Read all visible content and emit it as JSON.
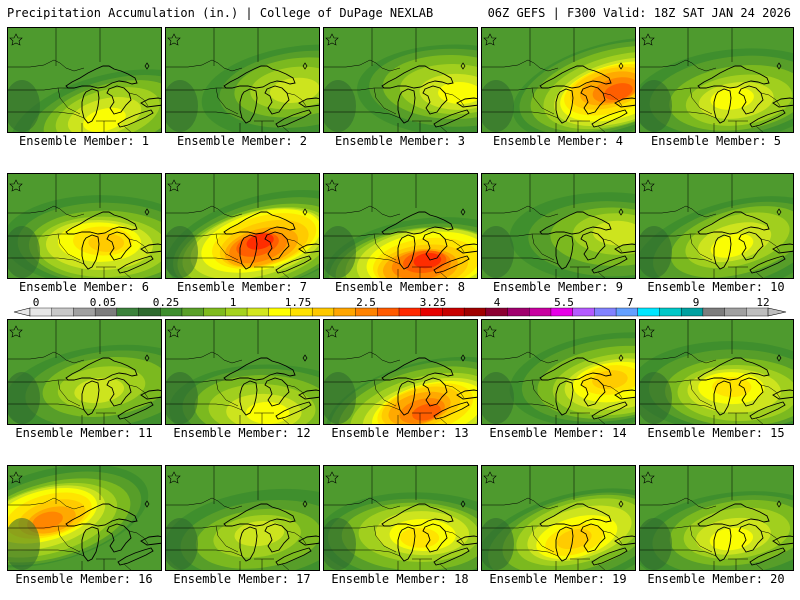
{
  "header": {
    "left": "Precipitation Accumulation (in.) | College of DuPage NEXLAB",
    "right": "06Z GEFS | F300 Valid: 18Z SAT JAN 24 2026"
  },
  "colorbar": {
    "labels": [
      "0",
      "0.05",
      "0.25",
      "1",
      "1.75",
      "2.5",
      "3.25",
      "4",
      "5.5",
      "7",
      "9",
      "12"
    ],
    "colors": [
      "#e6e6e6",
      "#c8c8c8",
      "#a0a0a0",
      "#7d7d7d",
      "#3c823c",
      "#2f6a2f",
      "#3e8e2e",
      "#5aa029",
      "#7fbb1e",
      "#a5d21e",
      "#d2e61e",
      "#ffff00",
      "#ffe100",
      "#ffc800",
      "#ffa500",
      "#ff8200",
      "#ff5a00",
      "#ff2800",
      "#e60000",
      "#c80000",
      "#a00000",
      "#8c0032",
      "#a0006e",
      "#c800a0",
      "#e600e6",
      "#b45aff",
      "#8282ff",
      "#64a0ff",
      "#00e6ff",
      "#00c8c8",
      "#00a0a0",
      "#7d7d7d",
      "#a0a0a0",
      "#bebebe"
    ]
  },
  "members": [
    {
      "label": "Ensemble Member: 1",
      "intensity": 0.45,
      "hot": "south"
    },
    {
      "label": "Ensemble Member: 2",
      "intensity": 0.35,
      "hot": "east"
    },
    {
      "label": "Ensemble Member: 3",
      "intensity": 0.45,
      "hot": "east"
    },
    {
      "label": "Ensemble Member: 4",
      "intensity": 0.75,
      "hot": "east"
    },
    {
      "label": "Ensemble Member: 5",
      "intensity": 0.45,
      "hot": "center"
    },
    {
      "label": "Ensemble Member: 6",
      "intensity": 0.6,
      "hot": "center"
    },
    {
      "label": "Ensemble Member: 7",
      "intensity": 0.85,
      "hot": "center"
    },
    {
      "label": "Ensemble Member: 8",
      "intensity": 0.85,
      "hot": "south"
    },
    {
      "label": "Ensemble Member: 9",
      "intensity": 0.35,
      "hot": "east"
    },
    {
      "label": "Ensemble Member: 10",
      "intensity": 0.45,
      "hot": "center"
    },
    {
      "label": "Ensemble Member: 11",
      "intensity": 0.35,
      "hot": "center"
    },
    {
      "label": "Ensemble Member: 12",
      "intensity": 0.45,
      "hot": "south"
    },
    {
      "label": "Ensemble Member: 13",
      "intensity": 0.8,
      "hot": "south"
    },
    {
      "label": "Ensemble Member: 14",
      "intensity": 0.55,
      "hot": "east"
    },
    {
      "label": "Ensemble Member: 15",
      "intensity": 0.5,
      "hot": "center"
    },
    {
      "label": "Ensemble Member: 16",
      "intensity": 0.7,
      "hot": "west"
    },
    {
      "label": "Ensemble Member: 17",
      "intensity": 0.35,
      "hot": "center"
    },
    {
      "label": "Ensemble Member: 18",
      "intensity": 0.5,
      "hot": "center"
    },
    {
      "label": "Ensemble Member: 19",
      "intensity": 0.55,
      "hot": "center"
    },
    {
      "label": "Ensemble Member: 20",
      "intensity": 0.4,
      "hot": "center"
    }
  ]
}
